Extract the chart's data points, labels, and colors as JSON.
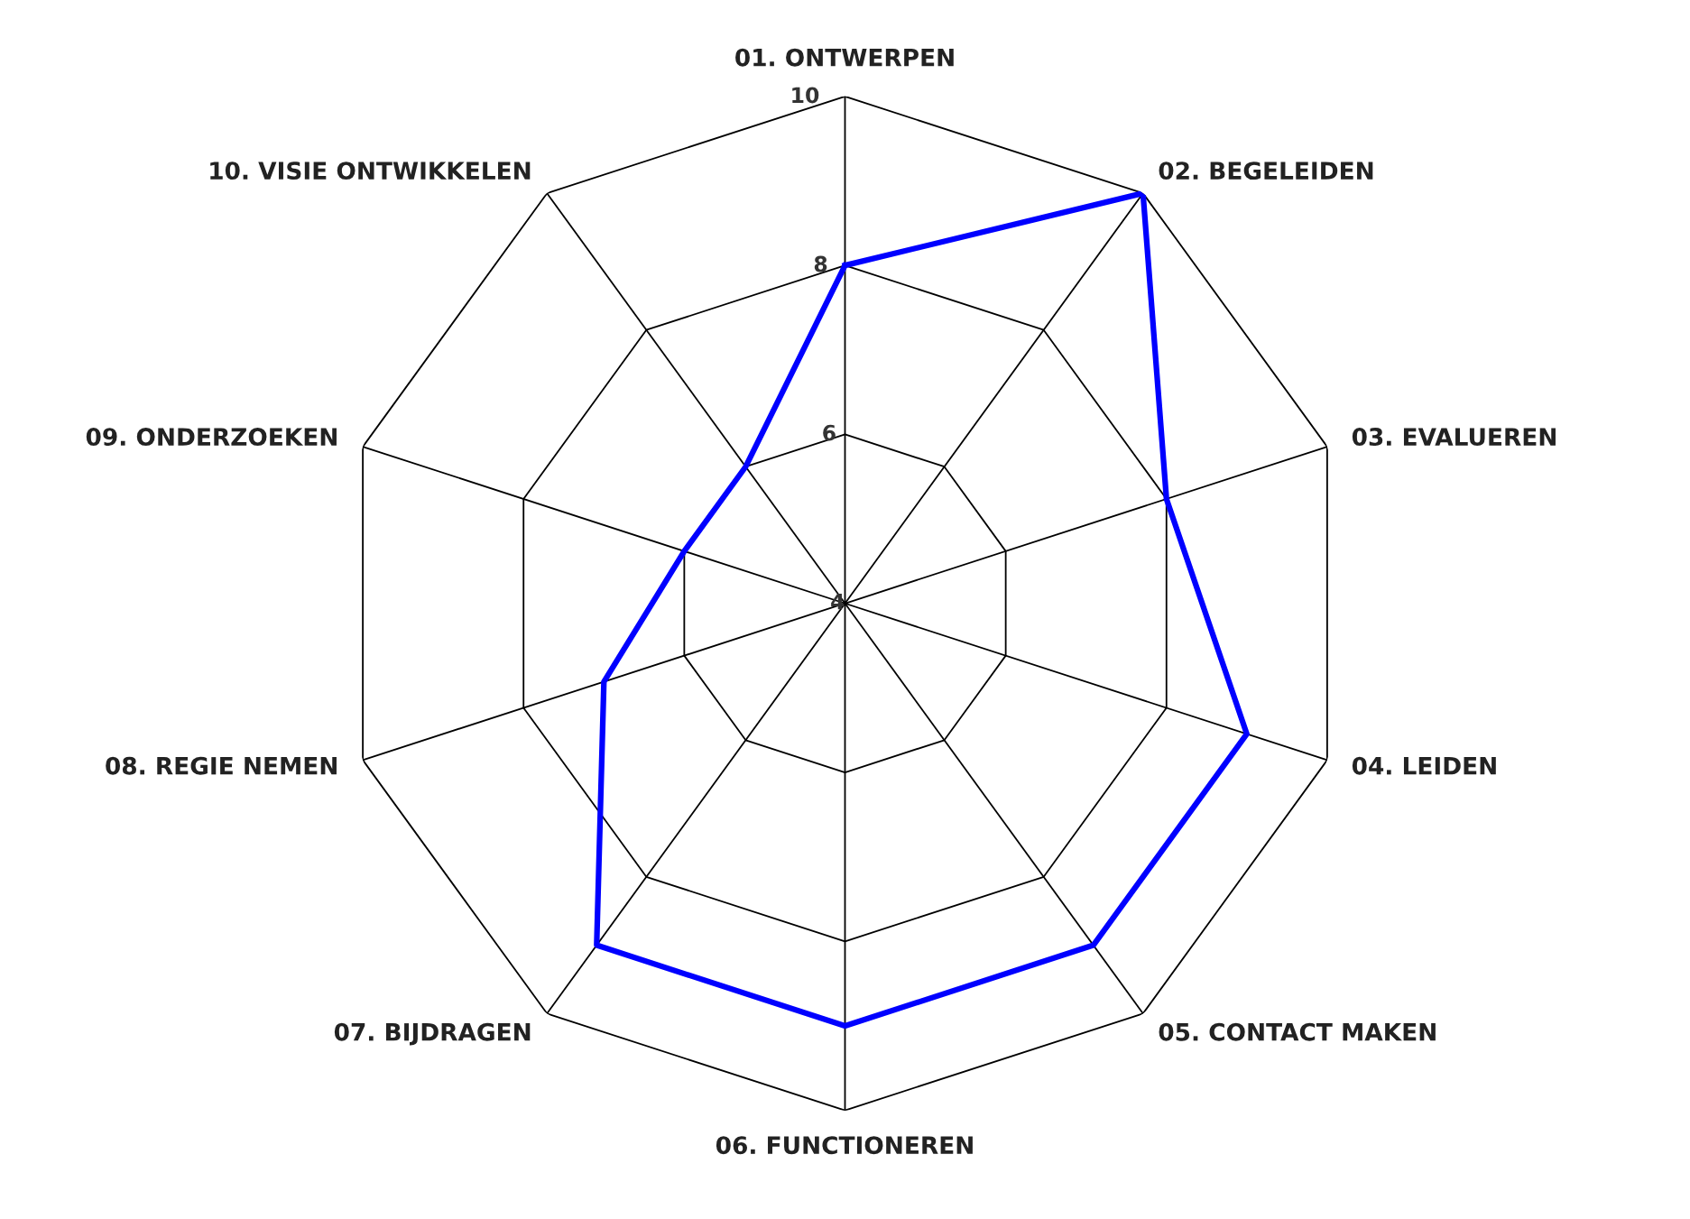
{
  "chart_data": {
    "type": "radar",
    "categories": [
      "01. ONTWERPEN",
      "02. BEGELEIDEN",
      "03. EVALUEREN",
      "04. LEIDEN",
      "05. CONTACT MAKEN",
      "06. FUNCTIONEREN",
      "07. BIJDRAGEN",
      "08. REGIE NEMEN",
      "09. ONDERZOEKEN",
      "10. VISIE ONTWIKKELEN"
    ],
    "series": [
      {
        "color": "#0000ff",
        "values": [
          8,
          10,
          8,
          9,
          9,
          9,
          9,
          7,
          6,
          6
        ]
      }
    ],
    "ylim": [
      4,
      10
    ],
    "yticks": [
      4,
      6,
      8,
      10
    ],
    "grid": true,
    "marker": "none",
    "line_style": "solid"
  }
}
